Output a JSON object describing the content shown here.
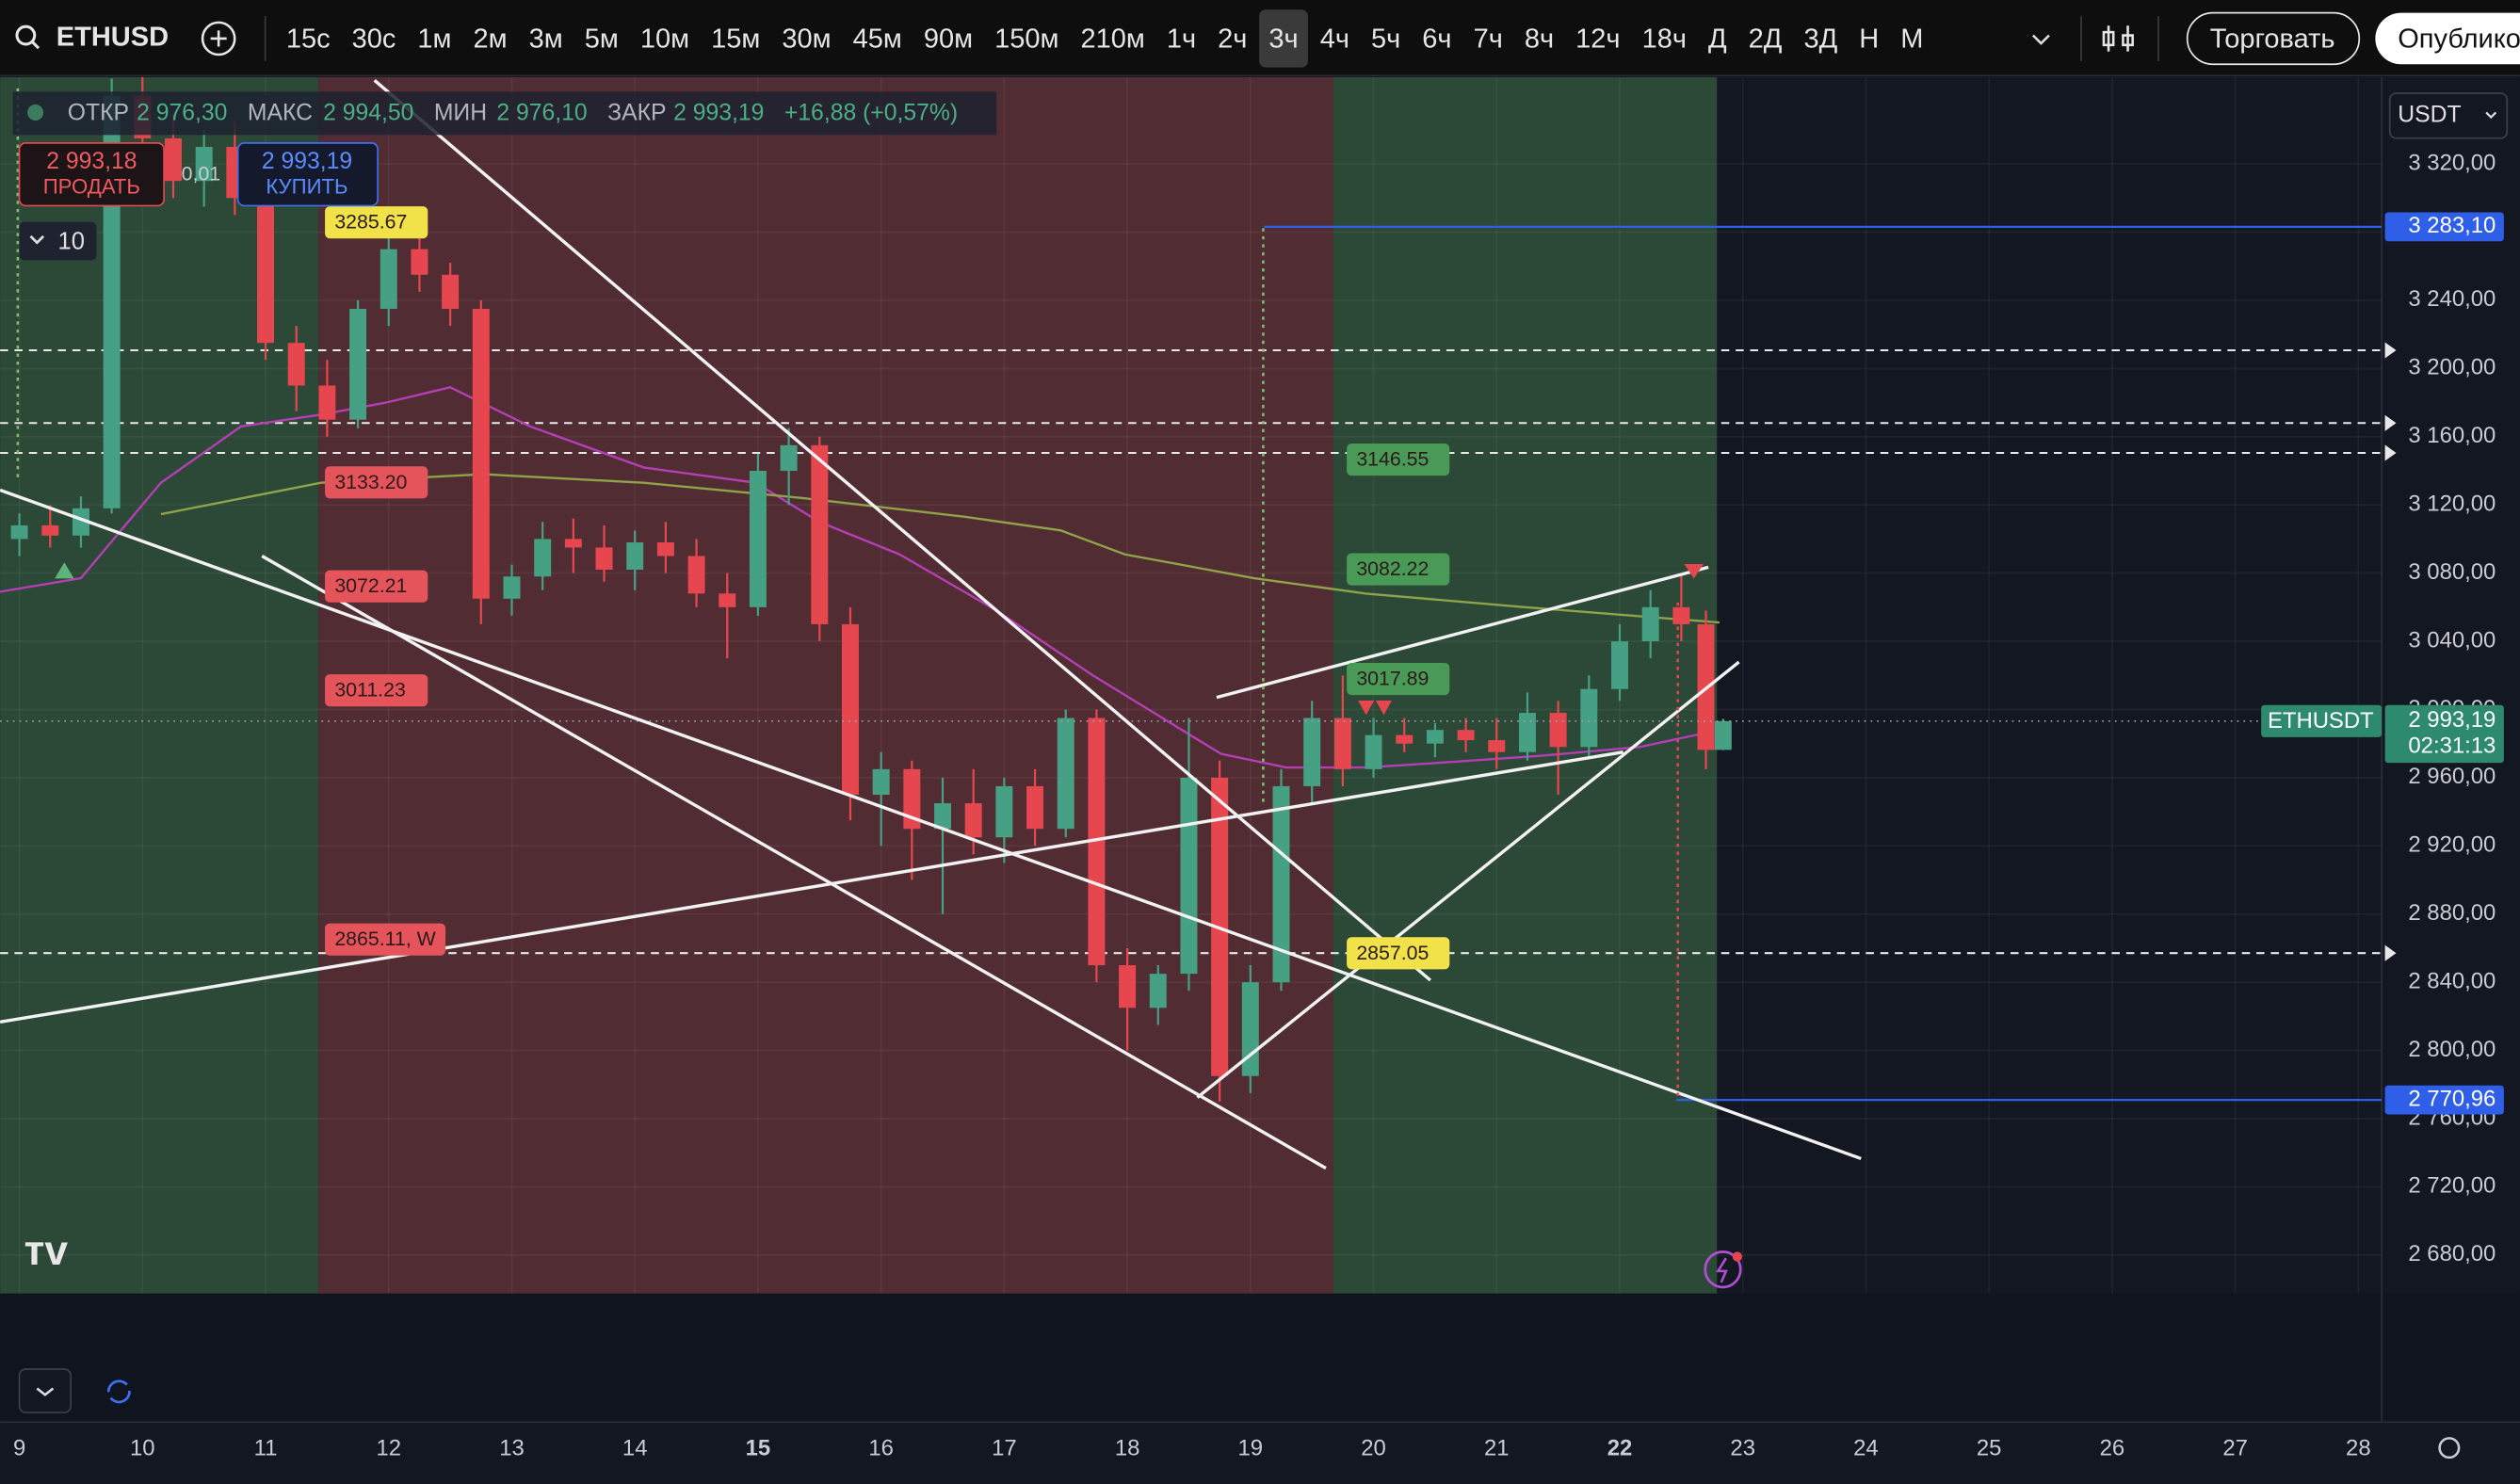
{
  "toolbar": {
    "symbol": "ETHUSD",
    "intervals": [
      "15с",
      "30с",
      "1м",
      "2м",
      "3м",
      "5м",
      "10м",
      "15м",
      "30м",
      "45м",
      "90м",
      "150м",
      "210м",
      "1ч",
      "2ч",
      "3ч",
      "4ч",
      "5ч",
      "6ч",
      "7ч",
      "8ч",
      "12ч",
      "18ч",
      "Д",
      "2Д",
      "3Д",
      "Н",
      "М"
    ],
    "active_interval": "3ч",
    "trade": "Торговать",
    "publish": "Опубликовать"
  },
  "legend": {
    "open_label": "ОТКР",
    "open": "2 976,30",
    "high_label": "МАКС",
    "high": "2 994,50",
    "low_label": "МИН",
    "low": "2 976,10",
    "close_label": "ЗАКР",
    "close": "2 993,19",
    "change": "+16,88 (+0,57%)"
  },
  "order": {
    "sell_price": "2 993,18",
    "sell": "ПРОДАТЬ",
    "spread": "0,01",
    "buy_price": "2 993,19",
    "buy": "КУПИТЬ"
  },
  "indicator_count": "10",
  "currency": "USDT",
  "chart_data": {
    "type": "candlestick",
    "up_color": "#46a083",
    "down_color": "#e6474f",
    "x": [
      9,
      9.25,
      9.5,
      9.75,
      10,
      10.25,
      10.5,
      10.75,
      11,
      11.25,
      11.5,
      11.75,
      12,
      12.25,
      12.5,
      12.75,
      13,
      13.25,
      13.5,
      13.75,
      14,
      14.25,
      14.5,
      14.75,
      15,
      15.25,
      15.5,
      15.75,
      16,
      16.25,
      16.5,
      16.75,
      17,
      17.25,
      17.5,
      17.75,
      18,
      18.25,
      18.5,
      18.75,
      19,
      19.25,
      19.5,
      19.75,
      20,
      20.25,
      20.5,
      20.75,
      21,
      21.25,
      21.5,
      21.75,
      22,
      22.25,
      22.5,
      22.7,
      22.84
    ],
    "open": [
      3100,
      3108,
      3102,
      3118,
      3360,
      3335,
      3310,
      3330,
      3300,
      3215,
      3190,
      3170,
      3235,
      3270,
      3255,
      3235,
      3065,
      3078,
      3100,
      3095,
      3082,
      3098,
      3090,
      3068,
      3060,
      3140,
      3155,
      3050,
      2950,
      2965,
      2930,
      2945,
      2925,
      2955,
      2930,
      2995,
      2850,
      2825,
      2845,
      2960,
      2785,
      2840,
      2955,
      2995,
      2965,
      2985,
      2980,
      2988,
      2982,
      2975,
      2998,
      2978,
      3012,
      3040,
      3060,
      3050,
      2976.3
    ],
    "high": [
      3115,
      3120,
      3125,
      3370,
      3375,
      3350,
      3340,
      3345,
      3310,
      3225,
      3205,
      3240,
      3285.67,
      3280,
      3262,
      3240,
      3085,
      3110,
      3112,
      3108,
      3105,
      3110,
      3100,
      3080,
      3150,
      3165,
      3160,
      3060,
      2975,
      2970,
      2960,
      2965,
      2960,
      2965,
      3000,
      3000,
      2860,
      2850,
      2995,
      2970,
      2850,
      2965,
      3005,
      3020,
      2995,
      2995,
      2992,
      2995,
      2995,
      3010,
      3005,
      3020,
      3050,
      3070,
      3080,
      3058,
      2994.5
    ],
    "low": [
      3090,
      3095,
      3095,
      3115,
      3320,
      3300,
      3295,
      3290,
      3205,
      3175,
      3160,
      3165,
      3225,
      3245,
      3225,
      3050,
      3055,
      3070,
      3080,
      3075,
      3070,
      3080,
      3060,
      3030,
      3055,
      3120,
      3040,
      2935,
      2920,
      2900,
      2880,
      2915,
      2910,
      2920,
      2925,
      2840,
      2800,
      2815,
      2835,
      2770,
      2775,
      2835,
      2945,
      2955,
      2960,
      2975,
      2972,
      2975,
      2965,
      2970,
      2950,
      2972,
      3005,
      3030,
      3040,
      2965,
      2976.1
    ],
    "close": [
      3108,
      3102,
      3118,
      3360,
      3335,
      3310,
      3330,
      3300,
      3215,
      3190,
      3170,
      3235,
      3270,
      3255,
      3235,
      3065,
      3078,
      3100,
      3095,
      3082,
      3098,
      3090,
      3068,
      3060,
      3140,
      3155,
      3050,
      2950,
      2965,
      2930,
      2945,
      2925,
      2955,
      2930,
      2995,
      2850,
      2825,
      2845,
      2960,
      2785,
      2840,
      2955,
      2995,
      2965,
      2985,
      2980,
      2988,
      2982,
      2975,
      2998,
      2978,
      3012,
      3040,
      3060,
      3050,
      2976.3,
      2993.19
    ],
    "moving_averages": [
      {
        "color": "#b43fb4",
        "x": [
          8.84,
          9.5,
          10.15,
          10.8,
          11.45,
          11.98,
          12.5,
          13.15,
          14.07,
          14.98,
          15.5,
          16.15,
          16.94,
          17.72,
          18.24,
          18.76,
          19.29,
          19.94,
          20.59,
          21.38,
          22.16,
          22.68
        ],
        "values": [
          3069,
          3077,
          3133,
          3166,
          3173,
          3180,
          3189,
          3166,
          3142,
          3133,
          3110,
          3091,
          3058,
          3020,
          2997,
          2974,
          2966,
          2966,
          2969,
          2973,
          2978,
          2986
        ]
      },
      {
        "color": "#8fa34a",
        "x": [
          10.15,
          11.45,
          12.76,
          14.07,
          15.37,
          16.68,
          17.46,
          17.98,
          19.03,
          19.94,
          21.24,
          22.81
        ],
        "values": [
          3114.5,
          3133,
          3138,
          3133,
          3124,
          3113,
          3105,
          3091,
          3077,
          3068,
          3060,
          3051
        ]
      }
    ],
    "zones": [
      {
        "from": 8.843,
        "to": 11.43,
        "color": "#2c4836"
      },
      {
        "from": 11.43,
        "to": 19.67,
        "color": "#512d33"
      },
      {
        "from": 19.67,
        "to": 22.79,
        "color": "#2c4836"
      }
    ],
    "levels": [
      3210.7,
      3168,
      3150.5,
      2857.1
    ],
    "price_lines": [
      {
        "value": 3283.1,
        "label": "3 283,10",
        "x_start": 19.11,
        "color": "#2f5fe8"
      },
      {
        "value": 2770.96,
        "label": "2 770,96",
        "x_start": 22.46,
        "color": "#2f5fe8"
      }
    ],
    "last_price": {
      "value": 2993.19,
      "symbol": "ETHUSDT",
      "label": "2 993,19",
      "countdown": "02:31:13",
      "color": "#2d8a6c"
    },
    "annotations": [
      {
        "value": 3285.67,
        "label": "3285.67",
        "x": 11.9,
        "color": "#f2e24a"
      },
      {
        "value": 3133.2,
        "label": "3133.20",
        "x": 11.9,
        "color": "#e5545a"
      },
      {
        "value": 3072.21,
        "label": "3072.21",
        "x": 11.9,
        "color": "#e5545a"
      },
      {
        "value": 3011.23,
        "label": "3011.23",
        "x": 11.9,
        "color": "#e5545a"
      },
      {
        "value": 2865.11,
        "label": "2865.11, W",
        "x": 11.9,
        "color": "#e5545a"
      },
      {
        "value": 3146.55,
        "label": "3146.55",
        "x": 20.2,
        "color": "#4a9a57"
      },
      {
        "value": 3082.22,
        "label": "3082.22",
        "x": 20.2,
        "color": "#4a9a57"
      },
      {
        "value": 3017.89,
        "label": "3017.89",
        "x": 20.2,
        "color": "#4a9a57"
      },
      {
        "value": 2857.05,
        "label": "2857.05",
        "x": 20.2,
        "color": "#f2e24a"
      }
    ],
    "xlim": [
      8.843,
      28.19
    ],
    "ylim": [
      2657.4,
      3370.9
    ],
    "xticks": [
      9,
      10,
      11,
      12,
      13,
      14,
      15,
      16,
      17,
      18,
      19,
      20,
      21,
      22,
      23,
      24,
      25,
      26,
      27,
      28
    ],
    "bold_xticks": [
      15,
      22
    ],
    "yticks": [
      {
        "value": 3320,
        "label": "3 320,00"
      },
      {
        "value": 3280,
        "label": "3 280,00"
      },
      {
        "value": 3240,
        "label": "3 240,00"
      },
      {
        "value": 3200,
        "label": "3 200,00"
      },
      {
        "value": 3160,
        "label": "3 160,00"
      },
      {
        "value": 3120,
        "label": "3 120,00"
      },
      {
        "value": 3080,
        "label": "3 080,00"
      },
      {
        "value": 3040,
        "label": "3 040,00"
      },
      {
        "value": 3000,
        "label": "3 000,00"
      },
      {
        "value": 2960,
        "label": "2 960,00"
      },
      {
        "value": 2920,
        "label": "2 920,00"
      },
      {
        "value": 2880,
        "label": "2 880,00"
      },
      {
        "value": 2840,
        "label": "2 840,00"
      },
      {
        "value": 2800,
        "label": "2 800,00"
      },
      {
        "value": 2760,
        "label": "2 760,00"
      },
      {
        "value": 2720,
        "label": "2 720,00"
      },
      {
        "value": 2680,
        "label": "2 680,00"
      }
    ],
    "grid": true
  }
}
